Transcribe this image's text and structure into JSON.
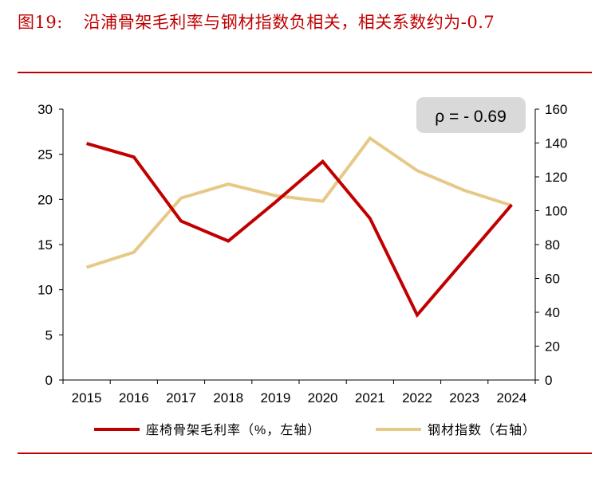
{
  "title": {
    "label": "图19:",
    "text": "沿浦骨架毛利率与钢材指数负相关，相关系数约为-0.7"
  },
  "colors": {
    "accent": "#c00000",
    "series1": "#c00000",
    "series2": "#e6c987",
    "annotation_bg": "#d9d9d9"
  },
  "chart_data": {
    "type": "line",
    "categories": [
      "2015",
      "2016",
      "2017",
      "2018",
      "2019",
      "2020",
      "2021",
      "2022",
      "2023",
      "2024"
    ],
    "y_left": {
      "min": 0,
      "max": 30,
      "ticks": [
        "0",
        "5",
        "10",
        "15",
        "20",
        "25",
        "30"
      ]
    },
    "y_right": {
      "min": 0,
      "max": 160,
      "ticks": [
        "0",
        "20",
        "40",
        "60",
        "80",
        "100",
        "120",
        "140",
        "160"
      ]
    },
    "series": [
      {
        "name": "座椅骨架毛利率（%，左轴）",
        "axis": "left",
        "color": "#c00000",
        "values": [
          26.2,
          24.7,
          17.6,
          15.4,
          19.7,
          24.2,
          17.9,
          7.2,
          13.3,
          19.4
        ]
      },
      {
        "name": "钢材指数（右轴）",
        "axis": "right",
        "color": "#e6c987",
        "values": [
          66.6,
          75.5,
          107.5,
          115.7,
          108.9,
          105.6,
          142.8,
          123.7,
          112.0,
          103.1
        ]
      }
    ],
    "annotation": "ρ = - 0.69",
    "grid": false,
    "legend_position": "bottom"
  }
}
